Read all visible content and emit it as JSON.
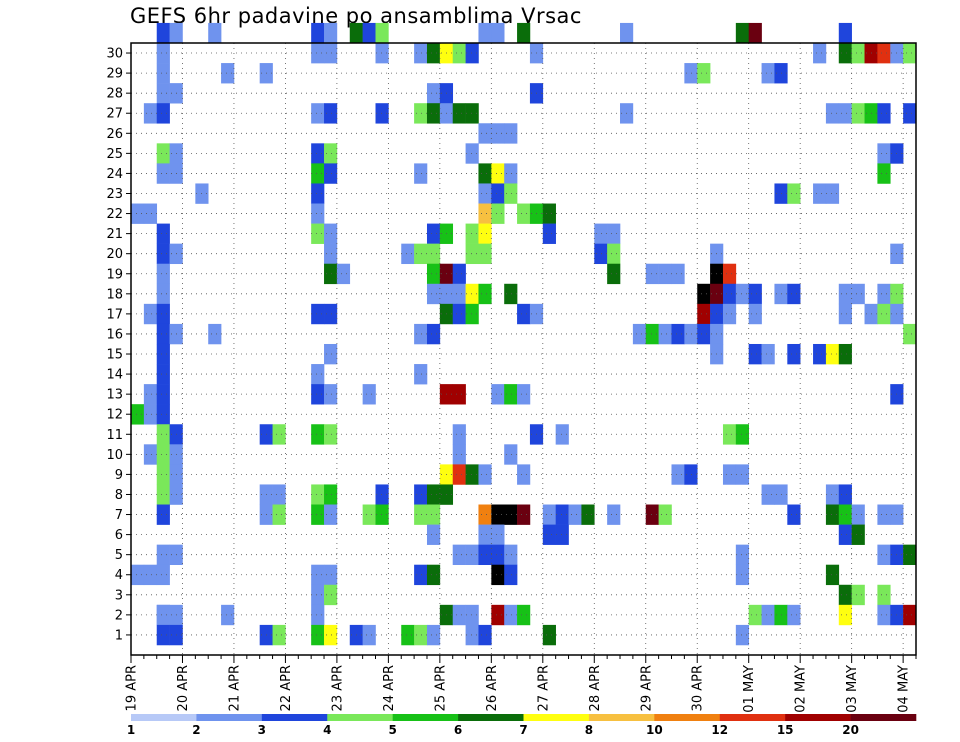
{
  "title": "GEFS 6hr padavine po ansamblima Vrsac",
  "chart_data": {
    "type": "heatmap",
    "title": "GEFS 6hr padavine po ansamblima Vrsac",
    "ylabel": "",
    "xlabel": "",
    "x_tick_labels": [
      "19 APR",
      "20 APR",
      "21 APR",
      "22 APR",
      "23 APR",
      "24 APR",
      "25 APR",
      "26 APR",
      "27 APR",
      "28 APR",
      "29 APR",
      "30 APR",
      "01 MAY",
      "02 MAY",
      "03 MAY",
      "04 MAY"
    ],
    "members": [
      "1",
      "2",
      "3",
      "4",
      "5",
      "6",
      "7",
      "8",
      "9",
      "10",
      "11",
      "12",
      "13",
      "14",
      "15",
      "16",
      "17",
      "18",
      "19",
      "20",
      "21",
      "22",
      "23",
      "24",
      "25",
      "26",
      "27",
      "28",
      "29",
      "30"
    ],
    "time_steps": 61,
    "step_hours": 6,
    "grid": true,
    "colorbar": {
      "labels": [
        "1",
        "2",
        "3",
        "4",
        "5",
        "6",
        "7",
        "8",
        "10",
        "12",
        "15",
        "20"
      ],
      "colors": [
        "#b7c9f7",
        "#6f93ee",
        "#1f45dc",
        "#7ae85a",
        "#17c117",
        "#0a6d0a",
        "#ffff10",
        "#f7c040",
        "#f08010",
        "#e03010",
        "#a00000",
        "#6a0010"
      ]
    },
    "cells": [
      [
        2,
        1,
        1
      ],
      [
        3,
        1,
        1
      ],
      [
        2,
        30,
        2
      ],
      [
        3,
        30,
        1
      ],
      [
        6,
        30,
        1
      ],
      [
        14,
        30,
        2
      ],
      [
        15,
        30,
        1
      ],
      [
        17,
        30,
        5
      ],
      [
        18,
        30,
        2
      ],
      [
        19,
        30,
        3
      ],
      [
        27,
        30,
        1
      ],
      [
        28,
        30,
        1
      ],
      [
        30,
        30,
        5
      ],
      [
        38,
        30,
        1
      ],
      [
        47,
        30,
        5
      ],
      [
        48,
        30,
        11
      ],
      [
        55,
        30,
        2
      ],
      [
        2,
        29,
        1
      ],
      [
        14,
        29,
        1
      ],
      [
        15,
        29,
        1
      ],
      [
        19,
        29,
        1
      ],
      [
        22,
        29,
        1
      ],
      [
        23,
        29,
        5
      ],
      [
        24,
        29,
        6
      ],
      [
        25,
        29,
        3
      ],
      [
        26,
        29,
        2
      ],
      [
        31,
        29,
        1
      ],
      [
        53,
        29,
        1
      ],
      [
        55,
        29,
        5
      ],
      [
        56,
        29,
        3
      ],
      [
        57,
        29,
        10
      ],
      [
        58,
        29,
        9
      ],
      [
        59,
        29,
        1
      ],
      [
        60,
        29,
        3
      ],
      [
        2,
        28,
        1
      ],
      [
        7,
        28,
        1
      ],
      [
        10,
        28,
        1
      ],
      [
        43,
        28,
        1
      ],
      [
        44,
        28,
        3
      ],
      [
        49,
        28,
        1
      ],
      [
        50,
        28,
        2
      ],
      [
        2,
        27,
        1
      ],
      [
        3,
        27,
        1
      ],
      [
        23,
        27,
        1
      ],
      [
        24,
        27,
        2
      ],
      [
        31,
        27,
        2
      ],
      [
        1,
        26,
        1
      ],
      [
        2,
        26,
        2
      ],
      [
        14,
        26,
        1
      ],
      [
        15,
        26,
        2
      ],
      [
        19,
        26,
        2
      ],
      [
        22,
        26,
        3
      ],
      [
        23,
        26,
        5
      ],
      [
        24,
        26,
        1
      ],
      [
        25,
        26,
        5
      ],
      [
        26,
        26,
        5
      ],
      [
        38,
        26,
        1
      ],
      [
        54,
        26,
        1
      ],
      [
        55,
        26,
        1
      ],
      [
        56,
        26,
        3
      ],
      [
        57,
        26,
        4
      ],
      [
        58,
        26,
        2
      ],
      [
        60,
        26,
        2
      ],
      [
        27,
        25,
        1
      ],
      [
        28,
        25,
        1
      ],
      [
        29,
        25,
        1
      ],
      [
        2,
        24,
        3
      ],
      [
        3,
        24,
        1
      ],
      [
        14,
        24,
        2
      ],
      [
        15,
        24,
        3
      ],
      [
        26,
        24,
        1
      ],
      [
        58,
        24,
        1
      ],
      [
        59,
        24,
        2
      ],
      [
        2,
        23,
        1
      ],
      [
        3,
        23,
        1
      ],
      [
        14,
        23,
        4
      ],
      [
        15,
        23,
        2
      ],
      [
        22,
        23,
        1
      ],
      [
        27,
        23,
        5
      ],
      [
        28,
        23,
        6
      ],
      [
        29,
        23,
        1
      ],
      [
        58,
        23,
        4
      ],
      [
        5,
        22,
        1
      ],
      [
        14,
        22,
        2
      ],
      [
        27,
        22,
        1
      ],
      [
        28,
        22,
        2
      ],
      [
        29,
        22,
        3
      ],
      [
        50,
        22,
        2
      ],
      [
        51,
        22,
        3
      ],
      [
        53,
        22,
        1
      ],
      [
        54,
        22,
        1
      ],
      [
        0,
        21,
        1
      ],
      [
        1,
        21,
        1
      ],
      [
        14,
        21,
        1
      ],
      [
        27,
        21,
        7
      ],
      [
        28,
        21,
        3
      ],
      [
        30,
        21,
        3
      ],
      [
        31,
        21,
        4
      ],
      [
        32,
        21,
        5
      ],
      [
        2,
        20,
        2
      ],
      [
        14,
        20,
        3
      ],
      [
        15,
        20,
        1
      ],
      [
        23,
        20,
        2
      ],
      [
        24,
        20,
        4
      ],
      [
        26,
        20,
        3
      ],
      [
        27,
        20,
        6
      ],
      [
        32,
        20,
        2
      ],
      [
        36,
        20,
        1
      ],
      [
        37,
        20,
        1
      ],
      [
        2,
        19,
        2
      ],
      [
        3,
        19,
        1
      ],
      [
        15,
        19,
        1
      ],
      [
        21,
        19,
        1
      ],
      [
        22,
        19,
        3
      ],
      [
        23,
        19,
        3
      ],
      [
        26,
        19,
        3
      ],
      [
        27,
        19,
        3
      ],
      [
        36,
        19,
        2
      ],
      [
        37,
        19,
        3
      ],
      [
        45,
        19,
        1
      ],
      [
        59,
        19,
        1
      ],
      [
        2,
        18,
        1
      ],
      [
        15,
        18,
        5
      ],
      [
        16,
        18,
        1
      ],
      [
        23,
        18,
        4
      ],
      [
        24,
        18,
        11
      ],
      [
        25,
        18,
        2
      ],
      [
        37,
        18,
        5
      ],
      [
        40,
        18,
        1
      ],
      [
        41,
        18,
        1
      ],
      [
        42,
        18,
        1
      ],
      [
        45,
        18,
        12
      ],
      [
        46,
        18,
        9
      ],
      [
        2,
        17,
        1
      ],
      [
        23,
        17,
        1
      ],
      [
        24,
        17,
        1
      ],
      [
        25,
        17,
        1
      ],
      [
        26,
        17,
        6
      ],
      [
        27,
        17,
        4
      ],
      [
        29,
        17,
        5
      ],
      [
        44,
        17,
        12
      ],
      [
        45,
        17,
        11
      ],
      [
        46,
        17,
        2
      ],
      [
        47,
        17,
        1
      ],
      [
        48,
        17,
        2
      ],
      [
        50,
        17,
        1
      ],
      [
        51,
        17,
        2
      ],
      [
        55,
        17,
        1
      ],
      [
        56,
        17,
        1
      ],
      [
        58,
        17,
        1
      ],
      [
        59,
        17,
        3
      ],
      [
        1,
        16,
        1
      ],
      [
        2,
        16,
        2
      ],
      [
        14,
        16,
        2
      ],
      [
        15,
        16,
        2
      ],
      [
        24,
        16,
        5
      ],
      [
        25,
        16,
        2
      ],
      [
        26,
        16,
        4
      ],
      [
        30,
        16,
        2
      ],
      [
        31,
        16,
        1
      ],
      [
        44,
        16,
        10
      ],
      [
        45,
        16,
        2
      ],
      [
        46,
        16,
        1
      ],
      [
        48,
        16,
        1
      ],
      [
        55,
        16,
        1
      ],
      [
        57,
        16,
        1
      ],
      [
        58,
        16,
        3
      ],
      [
        59,
        16,
        1
      ],
      [
        2,
        15,
        2
      ],
      [
        3,
        15,
        1
      ],
      [
        6,
        15,
        1
      ],
      [
        22,
        15,
        1
      ],
      [
        23,
        15,
        2
      ],
      [
        39,
        15,
        1
      ],
      [
        40,
        15,
        4
      ],
      [
        41,
        15,
        1
      ],
      [
        42,
        15,
        2
      ],
      [
        43,
        15,
        1
      ],
      [
        44,
        15,
        2
      ],
      [
        45,
        15,
        1
      ],
      [
        60,
        15,
        3
      ],
      [
        2,
        14,
        2
      ],
      [
        15,
        14,
        1
      ],
      [
        45,
        14,
        1
      ],
      [
        48,
        14,
        2
      ],
      [
        49,
        14,
        1
      ],
      [
        51,
        14,
        2
      ],
      [
        53,
        14,
        2
      ],
      [
        54,
        14,
        6
      ],
      [
        55,
        14,
        5
      ],
      [
        2,
        13,
        2
      ],
      [
        14,
        13,
        1
      ],
      [
        22,
        13,
        1
      ],
      [
        1,
        12,
        1
      ],
      [
        2,
        12,
        2
      ],
      [
        14,
        12,
        2
      ],
      [
        15,
        12,
        1
      ],
      [
        18,
        12,
        1
      ],
      [
        24,
        12,
        10
      ],
      [
        25,
        12,
        10
      ],
      [
        28,
        12,
        1
      ],
      [
        29,
        12,
        4
      ],
      [
        30,
        12,
        1
      ],
      [
        59,
        12,
        2
      ],
      [
        0,
        11,
        4
      ],
      [
        1,
        11,
        1
      ],
      [
        2,
        11,
        2
      ],
      [
        2,
        10,
        3
      ],
      [
        3,
        10,
        2
      ],
      [
        10,
        10,
        2
      ],
      [
        11,
        10,
        3
      ],
      [
        14,
        10,
        4
      ],
      [
        15,
        10,
        3
      ],
      [
        25,
        10,
        1
      ],
      [
        31,
        10,
        2
      ],
      [
        33,
        10,
        1
      ],
      [
        46,
        10,
        3
      ],
      [
        47,
        10,
        4
      ],
      [
        1,
        9,
        1
      ],
      [
        2,
        9,
        3
      ],
      [
        3,
        9,
        1
      ],
      [
        25,
        9,
        1
      ],
      [
        29,
        9,
        1
      ],
      [
        2,
        8,
        3
      ],
      [
        3,
        8,
        1
      ],
      [
        24,
        8,
        6
      ],
      [
        25,
        8,
        9
      ],
      [
        26,
        8,
        5
      ],
      [
        27,
        8,
        1
      ],
      [
        30,
        8,
        1
      ],
      [
        42,
        8,
        1
      ],
      [
        43,
        8,
        2
      ],
      [
        46,
        8,
        1
      ],
      [
        47,
        8,
        1
      ],
      [
        2,
        7,
        3
      ],
      [
        3,
        7,
        1
      ],
      [
        10,
        7,
        1
      ],
      [
        11,
        7,
        1
      ],
      [
        14,
        7,
        3
      ],
      [
        15,
        7,
        4
      ],
      [
        19,
        7,
        2
      ],
      [
        22,
        7,
        2
      ],
      [
        23,
        7,
        5
      ],
      [
        24,
        7,
        5
      ],
      [
        49,
        7,
        1
      ],
      [
        50,
        7,
        1
      ],
      [
        54,
        7,
        1
      ],
      [
        55,
        7,
        2
      ],
      [
        2,
        6,
        2
      ],
      [
        10,
        6,
        1
      ],
      [
        11,
        6,
        3
      ],
      [
        14,
        6,
        4
      ],
      [
        15,
        6,
        1
      ],
      [
        18,
        6,
        3
      ],
      [
        19,
        6,
        4
      ],
      [
        22,
        6,
        3
      ],
      [
        23,
        6,
        3
      ],
      [
        27,
        6,
        8
      ],
      [
        28,
        6,
        12
      ],
      [
        29,
        6,
        12
      ],
      [
        30,
        6,
        11
      ],
      [
        32,
        6,
        1
      ],
      [
        33,
        6,
        2
      ],
      [
        34,
        6,
        1
      ],
      [
        35,
        6,
        5
      ],
      [
        37,
        6,
        1
      ],
      [
        40,
        6,
        11
      ],
      [
        41,
        6,
        3
      ],
      [
        51,
        6,
        2
      ],
      [
        54,
        6,
        5
      ],
      [
        55,
        6,
        4
      ],
      [
        56,
        6,
        1
      ],
      [
        58,
        6,
        1
      ],
      [
        59,
        6,
        1
      ],
      [
        23,
        5,
        1
      ],
      [
        27,
        5,
        1
      ],
      [
        28,
        5,
        1
      ],
      [
        32,
        5,
        2
      ],
      [
        33,
        5,
        2
      ],
      [
        55,
        5,
        2
      ],
      [
        56,
        5,
        5
      ],
      [
        2,
        4,
        1
      ],
      [
        3,
        4,
        1
      ],
      [
        25,
        4,
        1
      ],
      [
        26,
        4,
        1
      ],
      [
        27,
        4,
        2
      ],
      [
        28,
        4,
        2
      ],
      [
        29,
        4,
        1
      ],
      [
        47,
        4,
        1
      ],
      [
        58,
        4,
        1
      ],
      [
        59,
        4,
        2
      ],
      [
        60,
        4,
        5
      ],
      [
        0,
        3,
        1
      ],
      [
        1,
        3,
        1
      ],
      [
        2,
        3,
        1
      ],
      [
        14,
        3,
        1
      ],
      [
        15,
        3,
        1
      ],
      [
        22,
        3,
        2
      ],
      [
        23,
        3,
        5
      ],
      [
        28,
        3,
        12
      ],
      [
        29,
        3,
        2
      ],
      [
        47,
        3,
        1
      ],
      [
        54,
        3,
        5
      ],
      [
        14,
        2,
        1
      ],
      [
        15,
        2,
        3
      ],
      [
        55,
        2,
        5
      ],
      [
        56,
        2,
        3
      ],
      [
        58,
        2,
        3
      ],
      [
        2,
        1,
        1
      ],
      [
        7,
        1,
        1
      ],
      [
        14,
        1,
        1
      ],
      [
        24,
        1,
        5
      ],
      [
        25,
        1,
        1
      ],
      [
        26,
        1,
        1
      ],
      [
        28,
        1,
        10
      ],
      [
        29,
        1,
        1
      ],
      [
        30,
        1,
        4
      ],
      [
        48,
        1,
        3
      ],
      [
        49,
        1,
        1
      ],
      [
        50,
        1,
        4
      ],
      [
        51,
        1,
        1
      ],
      [
        55,
        1,
        6
      ],
      [
        58,
        1,
        1
      ],
      [
        59,
        1,
        2
      ],
      [
        60,
        1,
        10
      ],
      [
        2,
        0,
        2
      ],
      [
        3,
        0,
        2
      ],
      [
        10,
        0,
        2
      ],
      [
        11,
        0,
        3
      ],
      [
        14,
        0,
        4
      ],
      [
        15,
        0,
        6
      ],
      [
        17,
        0,
        2
      ],
      [
        18,
        0,
        1
      ],
      [
        21,
        0,
        4
      ],
      [
        22,
        0,
        3
      ],
      [
        23,
        0,
        1
      ],
      [
        26,
        0,
        1
      ],
      [
        27,
        0,
        2
      ],
      [
        32,
        0,
        5
      ],
      [
        47,
        0,
        1
      ]
    ]
  }
}
